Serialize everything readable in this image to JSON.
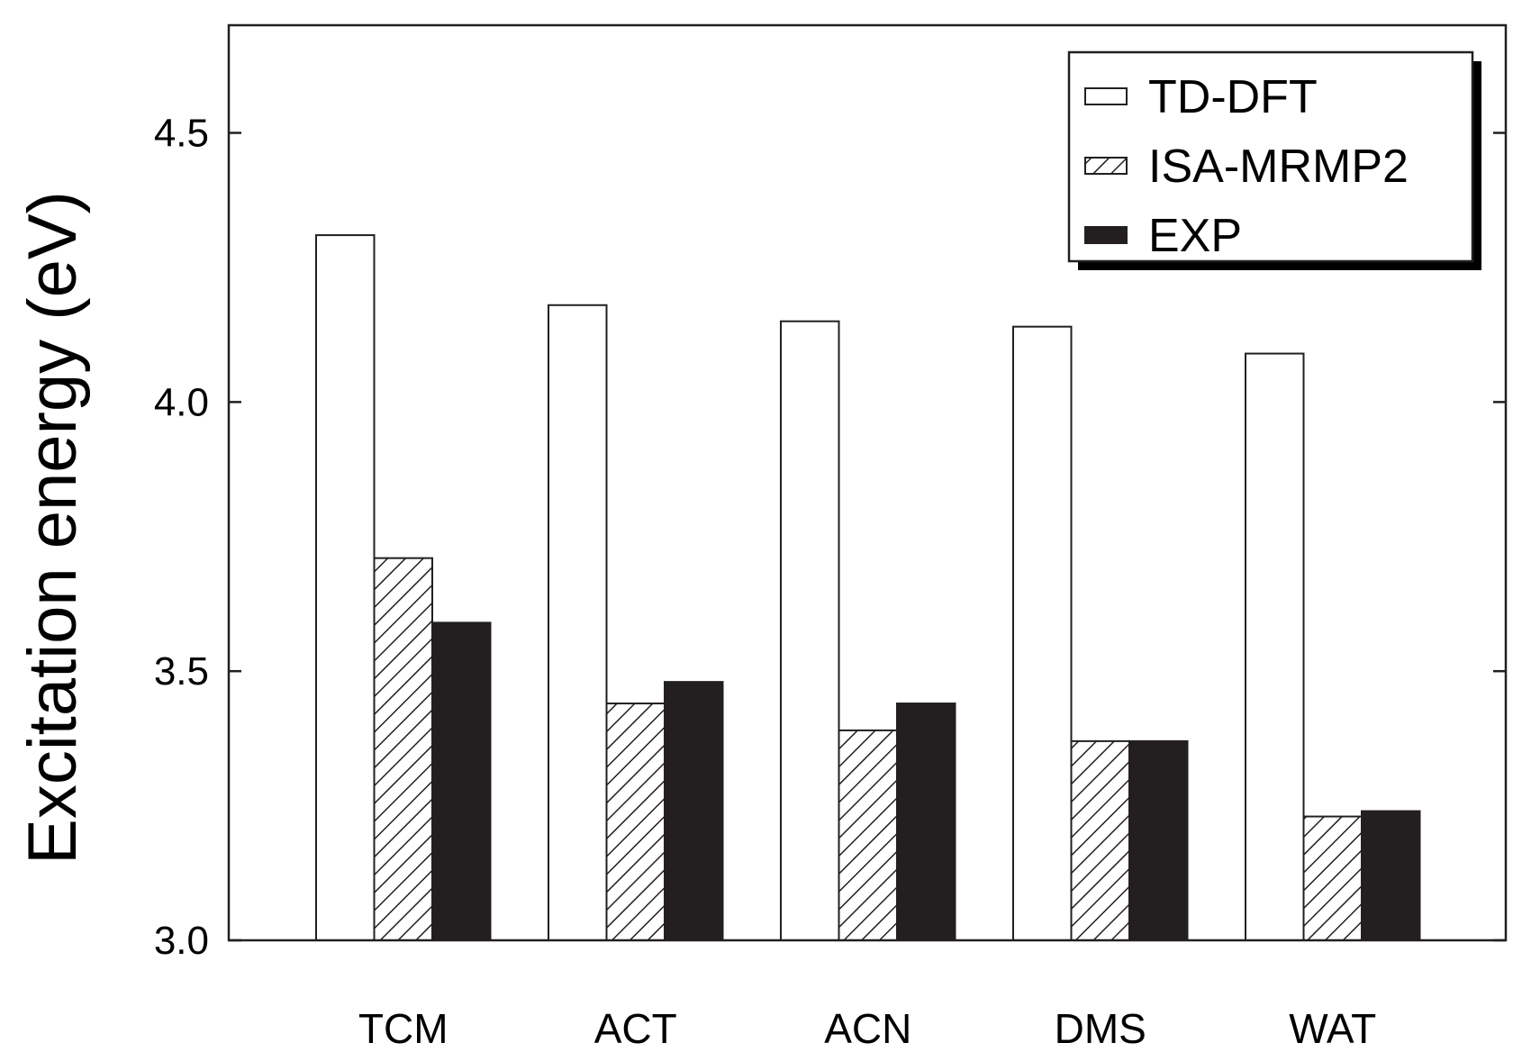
{
  "chart_data": {
    "type": "bar",
    "title": "",
    "xlabel": "",
    "ylabel": "Excitation energy (eV)",
    "ylim": [
      3.0,
      4.7
    ],
    "yticks": [
      3.0,
      3.5,
      4.0,
      4.5
    ],
    "ytick_labels": [
      "3.0",
      "3.5",
      "4.0",
      "4.5"
    ],
    "grid": false,
    "legend_position": "top-right",
    "categories": [
      "TCM",
      "ACT",
      "ACN",
      "DMS",
      "WAT"
    ],
    "series": [
      {
        "name": "TD-DFT",
        "style": "open",
        "values": [
          4.31,
          4.18,
          4.15,
          4.14,
          4.09
        ]
      },
      {
        "name": "ISA-MRMP2",
        "style": "hatched",
        "values": [
          3.71,
          3.44,
          3.39,
          3.37,
          3.23
        ]
      },
      {
        "name": "EXP",
        "style": "solid",
        "values": [
          3.59,
          3.48,
          3.44,
          3.37,
          3.24
        ]
      }
    ],
    "colors": {
      "fill_open": "#ffffff",
      "fill_solid": "#231f20",
      "stroke": "#231f20",
      "shadow": "#000000"
    }
  }
}
